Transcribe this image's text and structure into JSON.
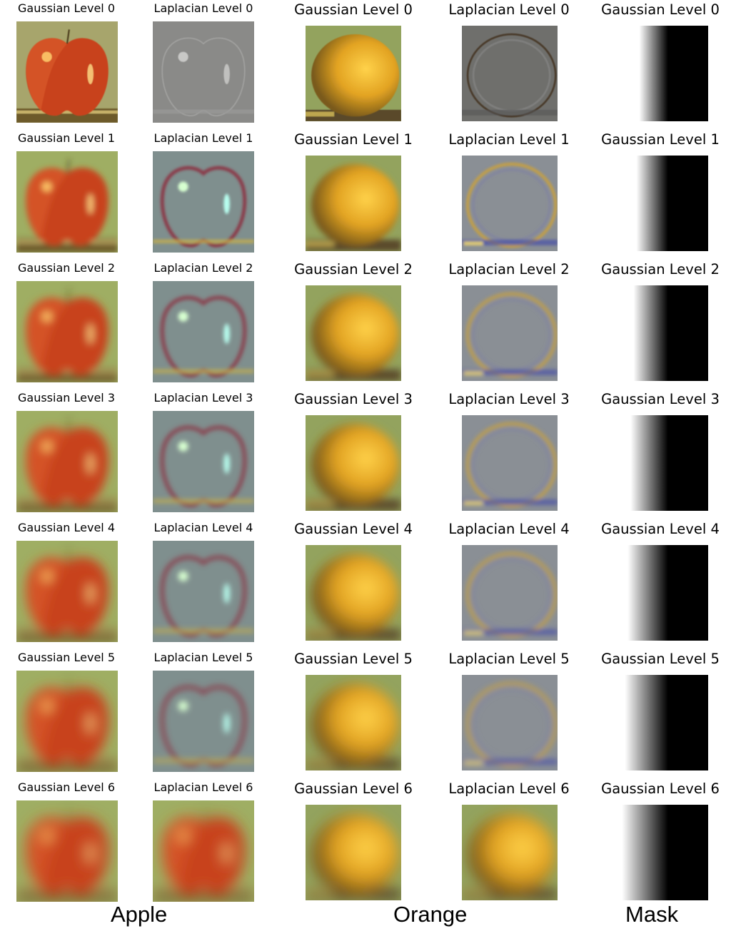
{
  "columns": [
    {
      "kind": "apple-gaussian",
      "labels": [
        "Gaussian Level 0",
        "Gaussian Level 1",
        "Gaussian Level 2",
        "Gaussian Level 3",
        "Gaussian Level 4",
        "Gaussian Level 5",
        "Gaussian Level 6"
      ]
    },
    {
      "kind": "apple-laplacian",
      "labels": [
        "Laplacian Level 0",
        "Laplacian Level 1",
        "Laplacian Level 2",
        "Laplacian Level 3",
        "Laplacian Level 4",
        "Laplacian Level 5",
        "Laplacian Level 6"
      ]
    },
    {
      "kind": "orange-gaussian",
      "labels": [
        "Gaussian Level 0",
        "Gaussian Level 1",
        "Gaussian Level 2",
        "Gaussian Level 3",
        "Gaussian Level 4",
        "Gaussian Level 5",
        "Gaussian Level 6"
      ]
    },
    {
      "kind": "orange-laplacian",
      "labels": [
        "Laplacian Level 0",
        "Laplacian Level 1",
        "Laplacian Level 2",
        "Laplacian Level 3",
        "Laplacian Level 4",
        "Laplacian Level 5",
        "Laplacian Level 6"
      ]
    },
    {
      "kind": "mask-gaussian",
      "labels": [
        "Gaussian Level 0",
        "Gaussian Level 1",
        "Gaussian Level 2",
        "Gaussian Level 3",
        "Gaussian Level 4",
        "Gaussian Level 5",
        "Gaussian Level 6"
      ]
    }
  ],
  "captions": {
    "apple": "Apple",
    "orange": "Orange",
    "mask": "Mask"
  }
}
